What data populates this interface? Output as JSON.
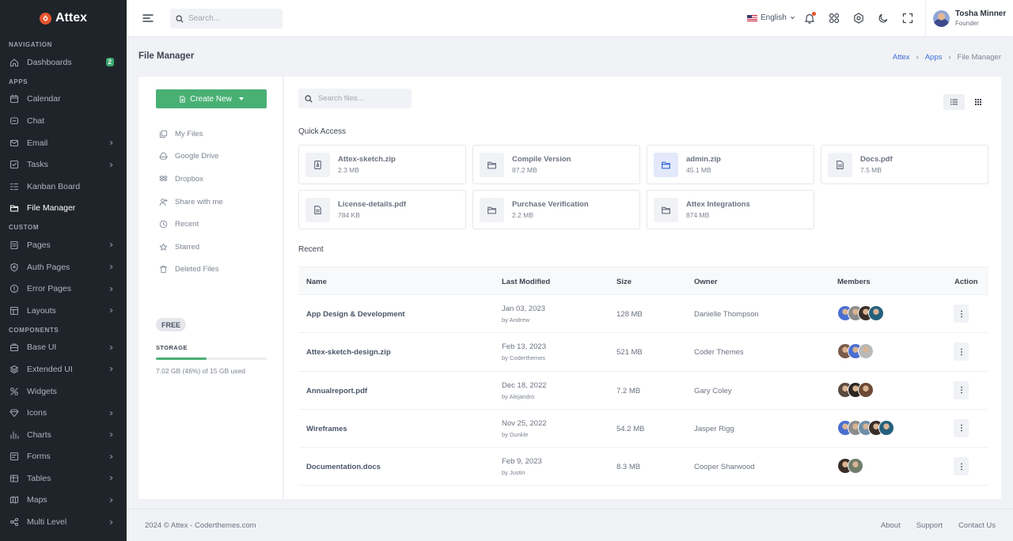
{
  "sidebar": {
    "brand": "Attex",
    "sections": [
      {
        "title": "NAVIGATION",
        "items": [
          {
            "label": "Dashboards",
            "icon": "home-icon",
            "badge": "2"
          }
        ]
      },
      {
        "title": "APPS",
        "items": [
          {
            "label": "Calendar",
            "icon": "calendar-icon"
          },
          {
            "label": "Chat",
            "icon": "chat-icon"
          },
          {
            "label": "Email",
            "icon": "mail-icon",
            "chevron": true
          },
          {
            "label": "Tasks",
            "icon": "task-icon",
            "chevron": true
          },
          {
            "label": "Kanban Board",
            "icon": "kanban-icon"
          },
          {
            "label": "File Manager",
            "icon": "folder-icon",
            "active": true
          }
        ]
      },
      {
        "title": "CUSTOM",
        "items": [
          {
            "label": "Pages",
            "icon": "pages-icon",
            "chevron": true
          },
          {
            "label": "Auth Pages",
            "icon": "shield-icon",
            "chevron": true
          },
          {
            "label": "Error Pages",
            "icon": "error-icon",
            "chevron": true
          },
          {
            "label": "Layouts",
            "icon": "layout-icon",
            "chevron": true
          }
        ]
      },
      {
        "title": "COMPONENTS",
        "items": [
          {
            "label": "Base UI",
            "icon": "briefcase-icon",
            "chevron": true
          },
          {
            "label": "Extended UI",
            "icon": "stack-icon",
            "chevron": true
          },
          {
            "label": "Widgets",
            "icon": "widget-icon"
          },
          {
            "label": "Icons",
            "icon": "diamond-icon",
            "chevron": true
          },
          {
            "label": "Charts",
            "icon": "chart-icon",
            "chevron": true
          },
          {
            "label": "Forms",
            "icon": "form-icon",
            "chevron": true
          },
          {
            "label": "Tables",
            "icon": "table-icon",
            "chevron": true
          },
          {
            "label": "Maps",
            "icon": "map-icon",
            "chevron": true
          },
          {
            "label": "Multi Level",
            "icon": "share-icon",
            "chevron": true
          }
        ]
      }
    ]
  },
  "topbar": {
    "search_placeholder": "Search...",
    "language": "English",
    "user": {
      "name": "Tosha Minner",
      "role": "Founder"
    }
  },
  "page": {
    "title": "File Manager",
    "breadcrumb": [
      "Attex",
      "Apps",
      "File Manager"
    ]
  },
  "left_panel": {
    "create_label": "Create New",
    "menu": [
      {
        "label": "My Files",
        "icon": "files-icon"
      },
      {
        "label": "Google Drive",
        "icon": "google-drive-icon"
      },
      {
        "label": "Dropbox",
        "icon": "dropbox-icon"
      },
      {
        "label": "Share with me",
        "icon": "share-user-icon"
      },
      {
        "label": "Recent",
        "icon": "clock-icon"
      },
      {
        "label": "Starred",
        "icon": "star-icon"
      },
      {
        "label": "Deleted Files",
        "icon": "trash-icon"
      }
    ],
    "plan": "FREE",
    "storage_label": "STORAGE",
    "storage_used_fraction": 0.46,
    "storage_text": "7.02 GB (46%) of 15 GB used"
  },
  "files": {
    "search_placeholder": "Search files...",
    "quick_access_title": "Quick Access",
    "quick_access": [
      {
        "name": "Attex-sketch.zip",
        "size": "2.3 MB",
        "icon": "zip-icon"
      },
      {
        "name": "Compile Version",
        "size": "87.2 MB",
        "icon": "folder-icon"
      },
      {
        "name": "admin.zip",
        "size": "45.1 MB",
        "icon": "folder-icon",
        "highlight": true
      },
      {
        "name": "Docs.pdf",
        "size": "7.5 MB",
        "icon": "document-icon"
      },
      {
        "name": "License-details.pdf",
        "size": "784 KB",
        "icon": "document-icon"
      },
      {
        "name": "Purchase Verification",
        "size": "2.2 MB",
        "icon": "folder-icon"
      },
      {
        "name": "Attex Integrations",
        "size": "874 MB",
        "icon": "folder-icon"
      }
    ],
    "recent_title": "Recent",
    "columns": [
      "Name",
      "Last Modified",
      "Size",
      "Owner",
      "Members",
      "Action"
    ],
    "rows": [
      {
        "name": "App Design & Development",
        "date": "Jan 03, 2023",
        "by": "by Andrew",
        "size": "128 MB",
        "owner": "Danielle Thompson",
        "members": [
          "#4a6fd1",
          "#8c8c8c",
          "#3a2e28",
          "#25607d"
        ]
      },
      {
        "name": "Attex-sketch-design.zip",
        "date": "Feb 13, 2023",
        "by": "by Coderthemes",
        "size": "521 MB",
        "owner": "Coder Themes",
        "members": [
          "#7a5b4c",
          "#4a6fd1",
          "#b9b9b9"
        ]
      },
      {
        "name": "Annualreport.pdf",
        "date": "Dec 18, 2022",
        "by": "by Alejandro",
        "size": "7.2 MB",
        "owner": "Gary Coley",
        "members": [
          "#5b4a3e",
          "#2d2623",
          "#6e4a35"
        ]
      },
      {
        "name": "Wireframes",
        "date": "Nov 25, 2022",
        "by": "by Dunkle",
        "size": "54.2 MB",
        "owner": "Jasper Rigg",
        "members": [
          "#4a6fd1",
          "#8c8c8c",
          "#6f8fa8",
          "#3a2e28",
          "#25607d"
        ]
      },
      {
        "name": "Documentation.docs",
        "date": "Feb 9, 2023",
        "by": "by Justin",
        "size": "8.3 MB",
        "owner": "Cooper Sharwood",
        "members": [
          "#3a2e28",
          "#6f7d6a"
        ]
      }
    ]
  },
  "footer": {
    "copyright": "2024 © Attex - Coderthemes.com",
    "links": [
      "About",
      "Support",
      "Contact Us"
    ]
  }
}
